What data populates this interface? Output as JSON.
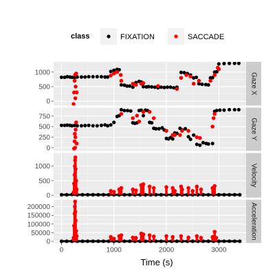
{
  "chart_data": {
    "type": "scatter",
    "xlabel": "Time (s)",
    "xlim": [
      -150,
      3520
    ],
    "xticks": [
      0,
      1000,
      2000,
      3000
    ],
    "legend": {
      "title": "class",
      "position": "top",
      "entries": [
        {
          "name": "FIXATION",
          "color": "#000000"
        },
        {
          "name": "SACCADE",
          "color": "#ff0000"
        }
      ]
    },
    "panels": [
      {
        "label": "Gaze X",
        "ylim": [
          -150,
          1350
        ],
        "yticks": [
          0,
          500,
          1000
        ],
        "fixation": [
          [
            0,
            820
          ],
          [
            60,
            820
          ],
          [
            110,
            840
          ],
          [
            160,
            830
          ],
          [
            200,
            820
          ],
          [
            250,
            810
          ],
          [
            300,
            830
          ],
          [
            380,
            830
          ],
          [
            450,
            830
          ],
          [
            520,
            840
          ],
          [
            600,
            840
          ],
          [
            680,
            840
          ],
          [
            760,
            840
          ],
          [
            830,
            830
          ],
          [
            880,
            830
          ],
          [
            940,
            1020
          ],
          [
            1000,
            1060
          ],
          [
            1060,
            1090
          ],
          [
            1100,
            1080
          ],
          [
            1140,
            560
          ],
          [
            1200,
            550
          ],
          [
            1250,
            520
          ],
          [
            1300,
            520
          ],
          [
            1360,
            480
          ],
          [
            1420,
            640
          ],
          [
            1480,
            680
          ],
          [
            1520,
            660
          ],
          [
            1560,
            500
          ],
          [
            1620,
            490
          ],
          [
            1660,
            500
          ],
          [
            1720,
            490
          ],
          [
            1780,
            480
          ],
          [
            1840,
            460
          ],
          [
            1900,
            480
          ],
          [
            1960,
            470
          ],
          [
            2020,
            480
          ],
          [
            2080,
            480
          ],
          [
            2140,
            460
          ],
          [
            2200,
            480
          ],
          [
            2280,
            990
          ],
          [
            2340,
            980
          ],
          [
            2400,
            950
          ],
          [
            2460,
            900
          ],
          [
            2520,
            800
          ],
          [
            2570,
            820
          ],
          [
            2620,
            600
          ],
          [
            2680,
            580
          ],
          [
            2750,
            570
          ],
          [
            2800,
            560
          ],
          [
            2840,
            800
          ],
          [
            2880,
            810
          ],
          [
            2920,
            1000
          ],
          [
            2960,
            1010
          ],
          [
            3000,
            1280
          ],
          [
            3100,
            1290
          ],
          [
            3200,
            1300
          ],
          [
            3300,
            1300
          ],
          [
            3380,
            1300
          ]
        ],
        "saccade": [
          [
            230,
            -100
          ],
          [
            240,
            300
          ],
          [
            250,
            700
          ],
          [
            260,
            900
          ],
          [
            265,
            100
          ],
          [
            270,
            500
          ],
          [
            280,
            950
          ],
          [
            290,
            300
          ],
          [
            940,
            880
          ],
          [
            1000,
            950
          ],
          [
            1060,
            1000
          ],
          [
            1130,
            900
          ],
          [
            1140,
            700
          ],
          [
            1360,
            600
          ],
          [
            1420,
            560
          ],
          [
            1520,
            600
          ],
          [
            1560,
            620
          ],
          [
            1840,
            520
          ],
          [
            2200,
            420
          ],
          [
            2280,
            800
          ],
          [
            2380,
            900
          ],
          [
            2460,
            850
          ],
          [
            2520,
            600
          ],
          [
            2620,
            700
          ],
          [
            2840,
            700
          ],
          [
            2920,
            900
          ],
          [
            2980,
            1150
          ],
          [
            3000,
            1100
          ]
        ]
      },
      {
        "label": "Gaze Y",
        "ylim": [
          -75,
          950
        ],
        "yticks": [
          0,
          250,
          500,
          750
        ],
        "fixation": [
          [
            0,
            530
          ],
          [
            60,
            530
          ],
          [
            110,
            535
          ],
          [
            160,
            530
          ],
          [
            200,
            520
          ],
          [
            250,
            530
          ],
          [
            300,
            520
          ],
          [
            380,
            520
          ],
          [
            450,
            525
          ],
          [
            520,
            530
          ],
          [
            600,
            520
          ],
          [
            680,
            520
          ],
          [
            760,
            530
          ],
          [
            830,
            540
          ],
          [
            880,
            520
          ],
          [
            940,
            540
          ],
          [
            1000,
            600
          ],
          [
            1060,
            740
          ],
          [
            1100,
            760
          ],
          [
            1140,
            900
          ],
          [
            1200,
            880
          ],
          [
            1260,
            880
          ],
          [
            1320,
            870
          ],
          [
            1360,
            590
          ],
          [
            1400,
            580
          ],
          [
            1440,
            590
          ],
          [
            1480,
            880
          ],
          [
            1520,
            890
          ],
          [
            1560,
            760
          ],
          [
            1600,
            890
          ],
          [
            1640,
            880
          ],
          [
            1680,
            600
          ],
          [
            1720,
            590
          ],
          [
            1760,
            460
          ],
          [
            1800,
            450
          ],
          [
            1860,
            450
          ],
          [
            1920,
            470
          ],
          [
            1960,
            420
          ],
          [
            2000,
            220
          ],
          [
            2040,
            210
          ],
          [
            2080,
            240
          ],
          [
            2120,
            210
          ],
          [
            2160,
            350
          ],
          [
            2200,
            340
          ],
          [
            2260,
            460
          ],
          [
            2300,
            420
          ],
          [
            2360,
            450
          ],
          [
            2420,
            260
          ],
          [
            2460,
            200
          ],
          [
            2520,
            300
          ],
          [
            2580,
            80
          ],
          [
            2640,
            60
          ],
          [
            2700,
            120
          ],
          [
            2760,
            100
          ],
          [
            2800,
            90
          ],
          [
            2880,
            100
          ],
          [
            2920,
            860
          ],
          [
            2960,
            880
          ],
          [
            3020,
            890
          ],
          [
            3100,
            890
          ],
          [
            3200,
            900
          ],
          [
            3300,
            900
          ],
          [
            3380,
            900
          ]
        ],
        "saccade": [
          [
            240,
            -20
          ],
          [
            250,
            150
          ],
          [
            255,
            330
          ],
          [
            260,
            0
          ],
          [
            265,
            250
          ],
          [
            270,
            430
          ],
          [
            280,
            600
          ],
          [
            290,
            100
          ],
          [
            1140,
            800
          ],
          [
            1360,
            700
          ],
          [
            1440,
            760
          ],
          [
            1480,
            620
          ],
          [
            1560,
            850
          ],
          [
            1680,
            850
          ],
          [
            1760,
            700
          ],
          [
            2000,
            400
          ],
          [
            2120,
            300
          ],
          [
            2160,
            300
          ],
          [
            2260,
            300
          ],
          [
            2300,
            400
          ],
          [
            2420,
            400
          ],
          [
            2580,
            250
          ],
          [
            2640,
            230
          ],
          [
            2880,
            500
          ],
          [
            2900,
            700
          ],
          [
            2920,
            800
          ]
        ]
      },
      {
        "label": "Velocity",
        "ylim": [
          -80,
          1450
        ],
        "yticks": [
          0,
          500,
          1000
        ],
        "fixation": [
          [
            0,
            20
          ],
          [
            100,
            20
          ],
          [
            200,
            30
          ],
          [
            300,
            20
          ],
          [
            400,
            20
          ],
          [
            500,
            20
          ],
          [
            600,
            20
          ],
          [
            700,
            20
          ],
          [
            800,
            20
          ],
          [
            900,
            20
          ],
          [
            1000,
            20
          ],
          [
            1100,
            20
          ],
          [
            1200,
            20
          ],
          [
            1300,
            20
          ],
          [
            1400,
            20
          ],
          [
            1500,
            20
          ],
          [
            1600,
            20
          ],
          [
            1700,
            20
          ],
          [
            1800,
            20
          ],
          [
            1900,
            20
          ],
          [
            2000,
            20
          ],
          [
            2100,
            20
          ],
          [
            2200,
            20
          ],
          [
            2300,
            20
          ],
          [
            2400,
            20
          ],
          [
            2500,
            20
          ],
          [
            2600,
            20
          ],
          [
            2700,
            20
          ],
          [
            2800,
            20
          ],
          [
            2900,
            20
          ],
          [
            3000,
            20
          ],
          [
            3100,
            20
          ],
          [
            3200,
            20
          ],
          [
            3300,
            20
          ],
          [
            3400,
            20
          ]
        ],
        "saccade": [
          [
            230,
            100
          ],
          [
            240,
            400
          ],
          [
            250,
            700
          ],
          [
            255,
            1000
          ],
          [
            260,
            1200
          ],
          [
            265,
            1300
          ],
          [
            270,
            900
          ],
          [
            280,
            500
          ],
          [
            290,
            200
          ],
          [
            940,
            150
          ],
          [
            1000,
            120
          ],
          [
            1100,
            200
          ],
          [
            1140,
            250
          ],
          [
            1360,
            200
          ],
          [
            1420,
            170
          ],
          [
            1520,
            350
          ],
          [
            1560,
            380
          ],
          [
            1680,
            300
          ],
          [
            1760,
            250
          ],
          [
            2000,
            280
          ],
          [
            2120,
            250
          ],
          [
            2160,
            150
          ],
          [
            2280,
            300
          ],
          [
            2300,
            200
          ],
          [
            2420,
            250
          ],
          [
            2500,
            150
          ],
          [
            2580,
            300
          ],
          [
            2660,
            200
          ],
          [
            2880,
            250
          ],
          [
            2920,
            320
          ]
        ]
      },
      {
        "label": "Acceleration",
        "ylim": [
          -10000,
          240000
        ],
        "yticks": [
          0,
          50000,
          100000,
          150000,
          200000
        ],
        "fixation": [
          [
            0,
            500
          ],
          [
            100,
            500
          ],
          [
            200,
            500
          ],
          [
            300,
            500
          ],
          [
            400,
            500
          ],
          [
            500,
            500
          ],
          [
            600,
            500
          ],
          [
            700,
            500
          ],
          [
            800,
            500
          ],
          [
            900,
            500
          ],
          [
            1000,
            500
          ],
          [
            1100,
            500
          ],
          [
            1200,
            500
          ],
          [
            1300,
            500
          ],
          [
            1400,
            500
          ],
          [
            1500,
            500
          ],
          [
            1600,
            500
          ],
          [
            1700,
            500
          ],
          [
            1800,
            500
          ],
          [
            1900,
            500
          ],
          [
            2000,
            500
          ],
          [
            2100,
            500
          ],
          [
            2200,
            500
          ],
          [
            2300,
            500
          ],
          [
            2400,
            500
          ],
          [
            2500,
            500
          ],
          [
            2600,
            500
          ],
          [
            2700,
            500
          ],
          [
            2800,
            500
          ],
          [
            2900,
            500
          ],
          [
            3000,
            500
          ],
          [
            3100,
            500
          ],
          [
            3200,
            500
          ],
          [
            3300,
            500
          ],
          [
            3400,
            500
          ]
        ],
        "saccade": [
          [
            230,
            20000
          ],
          [
            240,
            90000
          ],
          [
            250,
            160000
          ],
          [
            255,
            200000
          ],
          [
            260,
            230000
          ],
          [
            265,
            170000
          ],
          [
            270,
            120000
          ],
          [
            280,
            60000
          ],
          [
            290,
            30000
          ],
          [
            940,
            25000
          ],
          [
            1000,
            15000
          ],
          [
            1100,
            30000
          ],
          [
            1140,
            35000
          ],
          [
            1360,
            22000
          ],
          [
            1420,
            20000
          ],
          [
            1520,
            45000
          ],
          [
            1560,
            40000
          ],
          [
            1680,
            35000
          ],
          [
            1760,
            28000
          ],
          [
            2000,
            30000
          ],
          [
            2120,
            25000
          ],
          [
            2280,
            30000
          ],
          [
            2420,
            22000
          ],
          [
            2580,
            30000
          ],
          [
            2660,
            20000
          ],
          [
            2880,
            25000
          ],
          [
            2920,
            55000
          ],
          [
            2950,
            20000
          ]
        ]
      }
    ]
  }
}
